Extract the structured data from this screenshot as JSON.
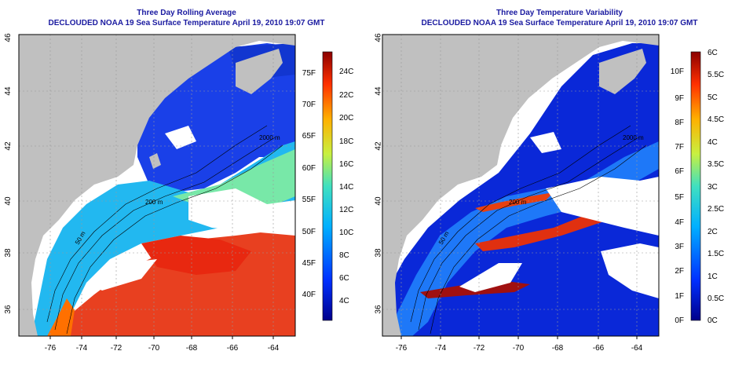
{
  "panels": [
    {
      "title": "Three Day Rolling Average",
      "subtitle": "DECLOUDED NOAA 19 Sea Surface Temperature April 19, 2010 19:07 GMT",
      "colorbar": {
        "f_labels": [
          "75F",
          "70F",
          "65F",
          "60F",
          "55F",
          "50F",
          "45F",
          "40F"
        ],
        "c_labels": [
          "24C",
          "22C",
          "20C",
          "18C",
          "16C",
          "14C",
          "12C",
          "10C",
          "8C",
          "6C",
          "4C"
        ]
      },
      "contour_labels": [
        "50 m",
        "200 m",
        "2000 m"
      ]
    },
    {
      "title": "Three Day Temperature Variability",
      "subtitle": "DECLOUDED NOAA 19 Sea Surface Temperature April 19, 2010 19:07 GMT",
      "colorbar": {
        "f_labels": [
          "10F",
          "9F",
          "8F",
          "7F",
          "6F",
          "5F",
          "4F",
          "3F",
          "2F",
          "1F",
          "0F"
        ],
        "c_labels": [
          "6C",
          "5.5C",
          "5C",
          "4.5C",
          "4C",
          "3.5C",
          "3C",
          "2.5C",
          "2C",
          "1.5C",
          "1C",
          "0.5C",
          "0C"
        ]
      },
      "contour_labels": [
        "50 m",
        "200 m",
        "2000 m"
      ]
    }
  ],
  "axes": {
    "x_ticks": [
      "-76",
      "-74",
      "-72",
      "-70",
      "-68",
      "-66",
      "-64"
    ],
    "y_ticks": [
      "46",
      "44",
      "42",
      "40",
      "38",
      "36"
    ]
  },
  "colors": {
    "land": "#c0c0c0",
    "title": "#1a1aa0"
  }
}
